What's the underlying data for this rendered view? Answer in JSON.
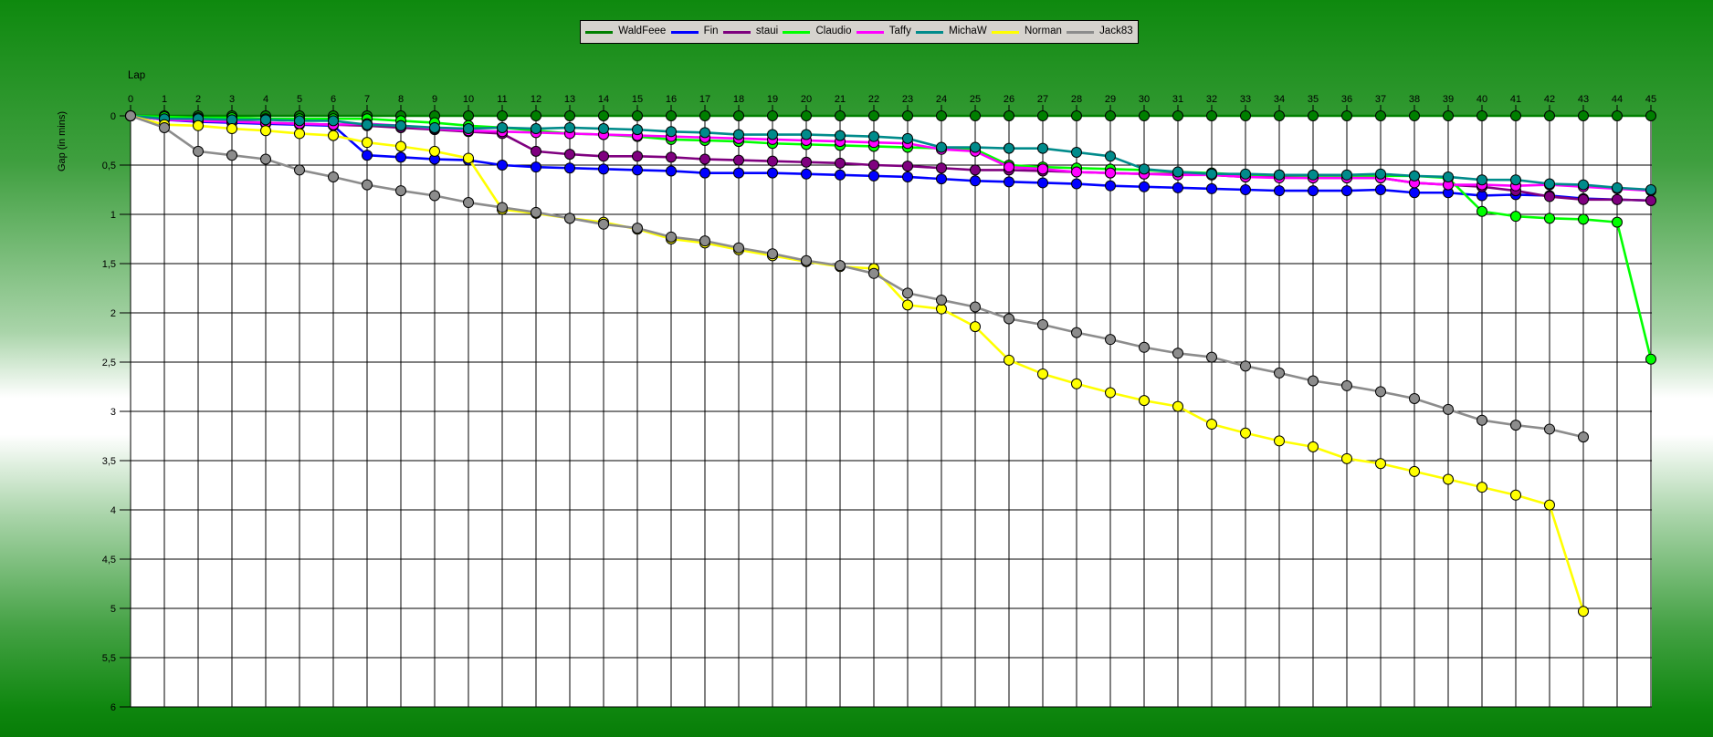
{
  "legend": {
    "items": [
      {
        "label": "WaldFeee",
        "color": "#007f00"
      },
      {
        "label": "Fin",
        "color": "#0000ff"
      },
      {
        "label": "staui",
        "color": "#7f007f"
      },
      {
        "label": "Claudio",
        "color": "#00ff00"
      },
      {
        "label": "Taffy",
        "color": "#ff00ff"
      },
      {
        "label": "MichaW",
        "color": "#008b8b"
      },
      {
        "label": "Norman",
        "color": "#ffff00"
      },
      {
        "label": "Jack83",
        "color": "#8c8c8c"
      }
    ]
  },
  "chart_data": {
    "type": "line",
    "title": "",
    "xlabel": "Lap",
    "ylabel": "Gap (in mins)",
    "xlim": [
      0,
      45
    ],
    "ylim": [
      0,
      6
    ],
    "y_axis_inverted": true,
    "grid": true,
    "legend_position": "top-center",
    "x_tick_labels": [
      "0",
      "1",
      "2",
      "3",
      "4",
      "5",
      "6",
      "7",
      "8",
      "9",
      "10",
      "11",
      "12",
      "13",
      "14",
      "15",
      "16",
      "17",
      "18",
      "19",
      "20",
      "21",
      "22",
      "23",
      "24",
      "25",
      "26",
      "27",
      "28",
      "29",
      "30",
      "31",
      "32",
      "33",
      "34",
      "35",
      "36",
      "37",
      "38",
      "39",
      "40",
      "41",
      "42",
      "43",
      "44",
      "45"
    ],
    "y_tick_labels": [
      "0",
      "0,5",
      "1",
      "1,5",
      "2",
      "2,5",
      "3",
      "3,5",
      "4",
      "4,5",
      "5",
      "5,5",
      "6"
    ],
    "y_tick_step": 0.5,
    "marker": "circle",
    "series": [
      {
        "name": "WaldFeee",
        "color": "#007f00",
        "x": [
          0,
          1,
          2,
          3,
          4,
          5,
          6,
          7,
          8,
          9,
          10,
          11,
          12,
          13,
          14,
          15,
          16,
          17,
          18,
          19,
          20,
          21,
          22,
          23,
          24,
          25,
          26,
          27,
          28,
          29,
          30,
          31,
          32,
          33,
          34,
          35,
          36,
          37,
          38,
          39,
          40,
          41,
          42,
          43,
          44,
          45
        ],
        "values": [
          0,
          0,
          0,
          0,
          0,
          0,
          0,
          0,
          0,
          0,
          0,
          0,
          0,
          0,
          0,
          0,
          0,
          0,
          0,
          0,
          0,
          0,
          0,
          0,
          0,
          0,
          0,
          0,
          0,
          0,
          0,
          0,
          0,
          0,
          0,
          0,
          0,
          0,
          0,
          0,
          0,
          0,
          0,
          0,
          0,
          0
        ]
      },
      {
        "name": "Fin",
        "color": "#0000ff",
        "x": [
          0,
          1,
          2,
          3,
          4,
          5,
          6,
          7,
          8,
          9,
          10,
          11,
          12,
          13,
          14,
          15,
          16,
          17,
          18,
          19,
          20,
          21,
          22,
          23,
          24,
          25,
          26,
          27,
          28,
          29,
          30,
          31,
          32,
          33,
          34,
          35,
          36,
          37,
          38,
          39,
          40,
          41,
          42,
          43,
          44,
          45
        ],
        "values": [
          0,
          0.04,
          0.06,
          0.07,
          0.08,
          0.09,
          0.1,
          0.4,
          0.42,
          0.44,
          0.45,
          0.5,
          0.52,
          0.53,
          0.54,
          0.55,
          0.56,
          0.58,
          0.58,
          0.58,
          0.59,
          0.6,
          0.61,
          0.62,
          0.64,
          0.66,
          0.67,
          0.68,
          0.69,
          0.71,
          0.72,
          0.73,
          0.74,
          0.75,
          0.76,
          0.76,
          0.76,
          0.75,
          0.78,
          0.78,
          0.81,
          0.8,
          0.81,
          0.84,
          0.85,
          0.86
        ]
      },
      {
        "name": "staui",
        "color": "#7f007f",
        "x": [
          0,
          1,
          2,
          3,
          4,
          5,
          6,
          7,
          8,
          9,
          10,
          11,
          12,
          13,
          14,
          15,
          16,
          17,
          18,
          19,
          20,
          21,
          22,
          23,
          24,
          25,
          26,
          27,
          28,
          29,
          30,
          31,
          32,
          33,
          34,
          35,
          36,
          37,
          38,
          39,
          40,
          41,
          42,
          43,
          44,
          45
        ],
        "values": [
          0,
          0.03,
          0.05,
          0.06,
          0.07,
          0.08,
          0.09,
          0.1,
          0.12,
          0.14,
          0.16,
          0.18,
          0.36,
          0.39,
          0.41,
          0.41,
          0.42,
          0.44,
          0.45,
          0.46,
          0.47,
          0.48,
          0.5,
          0.51,
          0.53,
          0.55,
          0.55,
          0.56,
          0.57,
          0.58,
          0.59,
          0.59,
          0.6,
          0.62,
          0.62,
          0.63,
          0.63,
          0.63,
          0.68,
          0.7,
          0.72,
          0.76,
          0.82,
          0.85,
          0.85,
          0.86
        ]
      },
      {
        "name": "Claudio",
        "color": "#00ff00",
        "x": [
          0,
          1,
          2,
          3,
          4,
          5,
          6,
          7,
          8,
          9,
          10,
          11,
          12,
          13,
          14,
          15,
          16,
          17,
          18,
          19,
          20,
          21,
          22,
          23,
          24,
          25,
          26,
          27,
          28,
          29,
          30,
          31,
          32,
          33,
          34,
          35,
          36,
          37,
          38,
          39,
          40,
          41,
          42,
          43,
          44,
          45
        ],
        "values": [
          0,
          0.01,
          0.02,
          0.02,
          0.03,
          0.03,
          0.03,
          0.03,
          0.05,
          0.07,
          0.1,
          0.12,
          0.15,
          0.18,
          0.19,
          0.21,
          0.24,
          0.25,
          0.26,
          0.28,
          0.29,
          0.3,
          0.31,
          0.32,
          0.33,
          0.34,
          0.5,
          0.52,
          0.53,
          0.54,
          0.55,
          0.57,
          0.58,
          0.6,
          0.6,
          0.61,
          0.61,
          0.61,
          0.61,
          0.63,
          0.97,
          1.02,
          1.04,
          1.05,
          1.08,
          2.47
        ]
      },
      {
        "name": "Taffy",
        "color": "#ff00ff",
        "x": [
          0,
          1,
          2,
          3,
          4,
          5,
          6,
          7,
          8,
          9,
          10,
          11,
          12,
          13,
          14,
          15,
          16,
          17,
          18,
          19,
          20,
          21,
          22,
          23,
          24,
          25,
          26,
          27,
          28,
          29,
          30,
          31,
          32,
          33,
          34,
          35,
          36,
          37,
          38,
          39,
          40,
          41,
          42,
          43,
          44,
          45
        ],
        "values": [
          0,
          0.04,
          0.05,
          0.06,
          0.07,
          0.08,
          0.09,
          0.08,
          0.1,
          0.13,
          0.15,
          0.16,
          0.17,
          0.18,
          0.19,
          0.2,
          0.21,
          0.22,
          0.23,
          0.24,
          0.25,
          0.26,
          0.27,
          0.28,
          0.34,
          0.36,
          0.52,
          0.54,
          0.57,
          0.58,
          0.59,
          0.6,
          0.6,
          0.62,
          0.63,
          0.63,
          0.63,
          0.63,
          0.68,
          0.7,
          0.7,
          0.71,
          0.7,
          0.72,
          0.74,
          0.76
        ]
      },
      {
        "name": "MichaW",
        "color": "#008b8b",
        "x": [
          0,
          1,
          2,
          3,
          4,
          5,
          6,
          7,
          8,
          9,
          10,
          11,
          12,
          13,
          14,
          15,
          16,
          17,
          18,
          19,
          20,
          21,
          22,
          23,
          24,
          25,
          26,
          27,
          28,
          29,
          30,
          31,
          32,
          33,
          34,
          35,
          36,
          37,
          38,
          39,
          40,
          41,
          42,
          43,
          44,
          45
        ],
        "values": [
          0,
          0.03,
          0.03,
          0.04,
          0.04,
          0.05,
          0.05,
          0.09,
          0.1,
          0.12,
          0.13,
          0.12,
          0.13,
          0.12,
          0.13,
          0.14,
          0.16,
          0.17,
          0.19,
          0.19,
          0.19,
          0.2,
          0.21,
          0.23,
          0.32,
          0.32,
          0.33,
          0.33,
          0.37,
          0.41,
          0.54,
          0.57,
          0.59,
          0.59,
          0.6,
          0.6,
          0.6,
          0.59,
          0.61,
          0.62,
          0.65,
          0.65,
          0.69,
          0.7,
          0.73,
          0.75
        ]
      },
      {
        "name": "Norman",
        "color": "#ffff00",
        "x": [
          0,
          1,
          2,
          3,
          4,
          5,
          6,
          7,
          8,
          9,
          10,
          11,
          12,
          13,
          14,
          15,
          16,
          17,
          18,
          19,
          20,
          21,
          22,
          23,
          24,
          25,
          26,
          27,
          28,
          29,
          30,
          31,
          32,
          33,
          34,
          35,
          36,
          37,
          38,
          39,
          40,
          41,
          42,
          43
        ],
        "values": [
          0,
          0.09,
          0.1,
          0.13,
          0.15,
          0.18,
          0.2,
          0.27,
          0.31,
          0.36,
          0.43,
          0.95,
          0.99,
          1.04,
          1.08,
          1.15,
          1.25,
          1.29,
          1.36,
          1.42,
          1.48,
          1.53,
          1.55,
          1.92,
          1.96,
          2.14,
          2.48,
          2.62,
          2.72,
          2.81,
          2.89,
          2.95,
          3.13,
          3.22,
          3.3,
          3.36,
          3.48,
          3.53,
          3.61,
          3.69,
          3.77,
          3.85,
          3.95,
          5.03
        ]
      },
      {
        "name": "Jack83",
        "color": "#8c8c8c",
        "x": [
          0,
          1,
          2,
          3,
          4,
          5,
          6,
          7,
          8,
          9,
          10,
          11,
          12,
          13,
          14,
          15,
          16,
          17,
          18,
          19,
          20,
          21,
          22,
          23,
          24,
          25,
          26,
          27,
          28,
          29,
          30,
          31,
          32,
          33,
          34,
          35,
          36,
          37,
          38,
          39,
          40,
          41,
          42,
          43
        ],
        "values": [
          0,
          0.12,
          0.36,
          0.4,
          0.44,
          0.55,
          0.62,
          0.7,
          0.76,
          0.81,
          0.88,
          0.93,
          0.98,
          1.04,
          1.1,
          1.14,
          1.23,
          1.27,
          1.34,
          1.4,
          1.47,
          1.52,
          1.6,
          1.8,
          1.87,
          1.94,
          2.06,
          2.12,
          2.2,
          2.27,
          2.35,
          2.41,
          2.45,
          2.54,
          2.61,
          2.69,
          2.74,
          2.8,
          2.87,
          2.98,
          3.09,
          3.14,
          3.18,
          3.26
        ]
      }
    ]
  }
}
